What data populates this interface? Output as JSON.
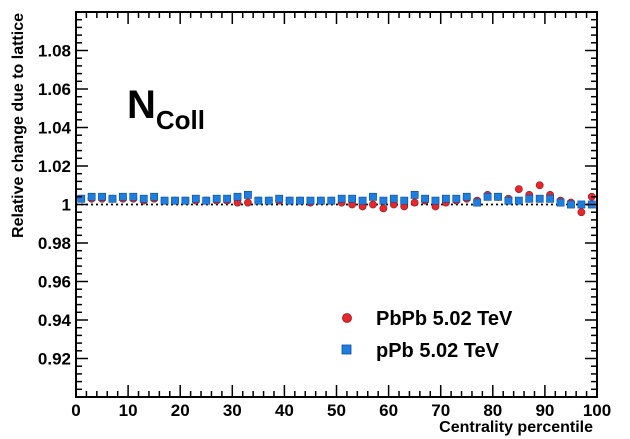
{
  "chart_data": {
    "type": "scatter",
    "title": "",
    "xlabel": "Centrality percentile",
    "ylabel": "Relative change due to lattice",
    "xlim": [
      0,
      100
    ],
    "ylim": [
      0.9,
      1.1
    ],
    "x_ticks": [
      0,
      10,
      20,
      30,
      40,
      50,
      60,
      70,
      80,
      90,
      100
    ],
    "y_ticks": [
      0.92,
      0.94,
      0.96,
      0.98,
      1,
      1.02,
      1.04,
      1.06,
      1.08
    ],
    "x_tick_labels": [
      "0",
      "10",
      "20",
      "30",
      "40",
      "50",
      "60",
      "70",
      "80",
      "90",
      "100"
    ],
    "y_tick_labels": [
      "0.92",
      "0.94",
      "0.96",
      "0.98",
      "1",
      "1.02",
      "1.04",
      "1.06",
      "1.08"
    ],
    "annotation": {
      "main": "N",
      "subscript": "Coll"
    },
    "reference_line": {
      "y": 1.0,
      "style": "dotted"
    },
    "legend_position": "bottom-right",
    "grid": false,
    "series": [
      {
        "name": "PbPb 5.02 TeV",
        "marker": "circle",
        "color": "#e8262b",
        "x": [
          1,
          3,
          5,
          7,
          9,
          11,
          13,
          15,
          17,
          19,
          21,
          23,
          25,
          27,
          29,
          31,
          33,
          35,
          37,
          39,
          41,
          43,
          45,
          47,
          49,
          51,
          53,
          55,
          57,
          59,
          61,
          63,
          65,
          67,
          69,
          71,
          73,
          75,
          77,
          79,
          81,
          83,
          85,
          87,
          89,
          91,
          93,
          95,
          97,
          99
        ],
        "y": [
          1.003,
          1.003,
          1.003,
          1.003,
          1.003,
          1.003,
          1.002,
          1.003,
          1.002,
          1.002,
          1.002,
          1.002,
          1.002,
          1.002,
          1.002,
          1.001,
          1.001,
          1.002,
          1.002,
          1.002,
          1.002,
          1.002,
          1.001,
          1.002,
          1.002,
          1.001,
          1.0,
          0.999,
          1.0,
          0.998,
          1.0,
          0.999,
          1.001,
          1.002,
          0.999,
          1.001,
          1.002,
          1.003,
          1.002,
          1.005,
          1.004,
          1.003,
          1.008,
          1.005,
          1.01,
          1.005,
          1.002,
          1.001,
          0.996,
          1.004
        ]
      },
      {
        "name": "pPb 5.02 TeV",
        "marker": "square",
        "color": "#1e7ee0",
        "x": [
          1,
          3,
          5,
          7,
          9,
          11,
          13,
          15,
          17,
          19,
          21,
          23,
          25,
          27,
          29,
          31,
          33,
          35,
          37,
          39,
          41,
          43,
          45,
          47,
          49,
          51,
          53,
          55,
          57,
          59,
          61,
          63,
          65,
          67,
          69,
          71,
          73,
          75,
          77,
          79,
          81,
          83,
          85,
          87,
          89,
          91,
          93,
          95,
          97,
          99
        ],
        "y": [
          1.003,
          1.004,
          1.004,
          1.003,
          1.004,
          1.004,
          1.003,
          1.004,
          1.002,
          1.002,
          1.002,
          1.003,
          1.002,
          1.003,
          1.003,
          1.004,
          1.005,
          1.002,
          1.002,
          1.003,
          1.002,
          1.002,
          1.002,
          1.002,
          1.002,
          1.003,
          1.003,
          1.002,
          1.004,
          1.002,
          1.003,
          1.002,
          1.005,
          1.003,
          1.002,
          1.003,
          1.003,
          1.004,
          1.001,
          1.004,
          1.004,
          1.002,
          1.002,
          1.003,
          1.003,
          1.003,
          1.001,
          1.0,
          1.0,
          1.0
        ]
      }
    ]
  }
}
